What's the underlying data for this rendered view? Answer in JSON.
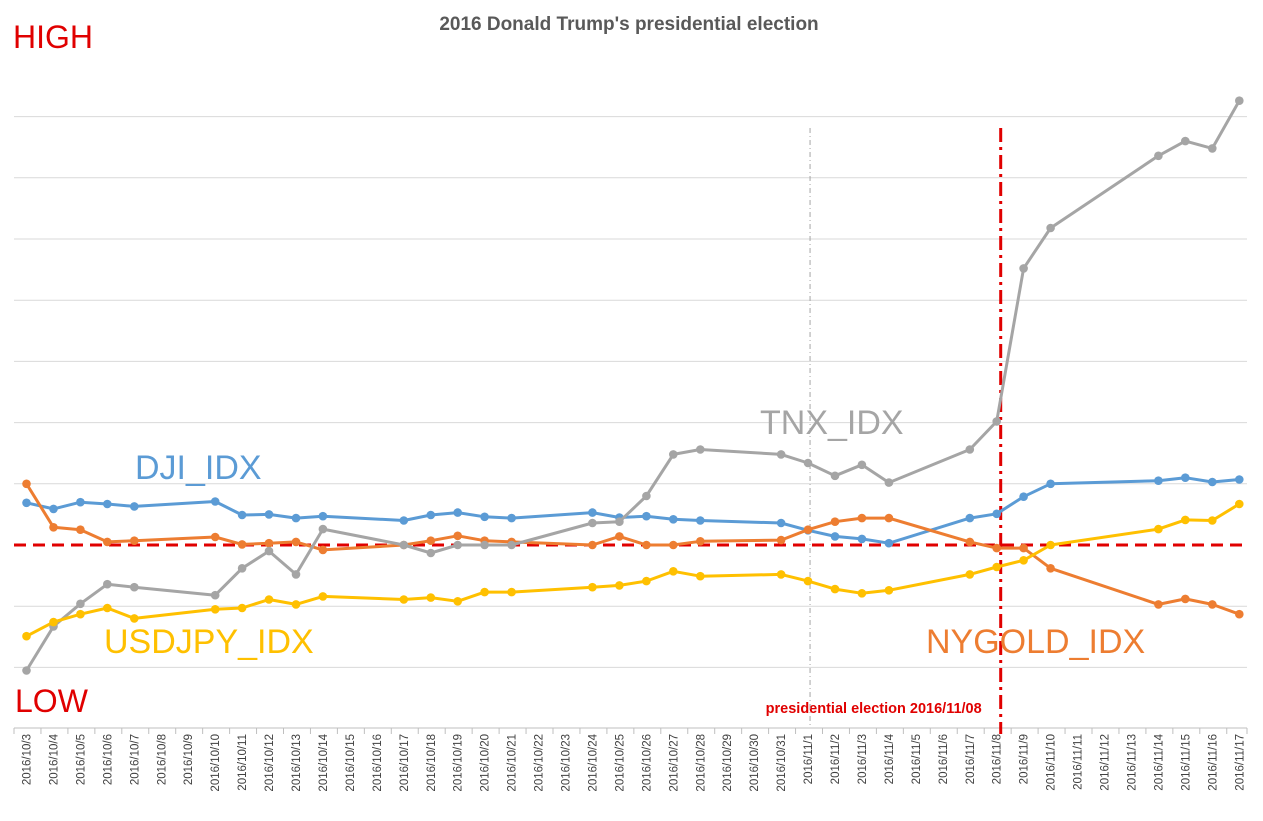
{
  "chart_data": {
    "type": "line",
    "title": "2016 Donald Trump's presidential election",
    "xlabel": "",
    "ylabel": "",
    "corner_labels": {
      "high": "HIGH",
      "low": "LOW"
    },
    "x_ticks": [
      "2016/10/3",
      "2016/10/4",
      "2016/10/5",
      "2016/10/6",
      "2016/10/7",
      "2016/10/8",
      "2016/10/9",
      "2016/10/10",
      "2016/10/11",
      "2016/10/12",
      "2016/10/13",
      "2016/10/14",
      "2016/10/15",
      "2016/10/16",
      "2016/10/17",
      "2016/10/18",
      "2016/10/19",
      "2016/10/20",
      "2016/10/21",
      "2016/10/22",
      "2016/10/23",
      "2016/10/24",
      "2016/10/25",
      "2016/10/26",
      "2016/10/27",
      "2016/10/28",
      "2016/10/29",
      "2016/10/30",
      "2016/10/31",
      "2016/11/1",
      "2016/11/2",
      "2016/11/3",
      "2016/11/4",
      "2016/11/5",
      "2016/11/6",
      "2016/11/7",
      "2016/11/8",
      "2016/11/9",
      "2016/11/10",
      "2016/11/11",
      "2016/11/12",
      "2016/11/13",
      "2016/11/14",
      "2016/11/15",
      "2016/11/16",
      "2016/11/17"
    ],
    "ylim": [
      -2,
      7
    ],
    "grid": true,
    "y_tick_labels": [],
    "baseline": 0,
    "series": [
      {
        "name": "DJI_IDX",
        "color": "#5b9bd5",
        "points": [
          [
            "2016/10/3",
            0.69
          ],
          [
            "2016/10/4",
            0.59
          ],
          [
            "2016/10/5",
            0.7
          ],
          [
            "2016/10/6",
            0.67
          ],
          [
            "2016/10/7",
            0.63
          ],
          [
            "2016/10/10",
            0.71
          ],
          [
            "2016/10/11",
            0.49
          ],
          [
            "2016/10/12",
            0.5
          ],
          [
            "2016/10/13",
            0.44
          ],
          [
            "2016/10/14",
            0.47
          ],
          [
            "2016/10/17",
            0.4
          ],
          [
            "2016/10/18",
            0.49
          ],
          [
            "2016/10/19",
            0.53
          ],
          [
            "2016/10/20",
            0.46
          ],
          [
            "2016/10/21",
            0.44
          ],
          [
            "2016/10/24",
            0.53
          ],
          [
            "2016/10/25",
            0.45
          ],
          [
            "2016/10/26",
            0.47
          ],
          [
            "2016/10/27",
            0.42
          ],
          [
            "2016/10/28",
            0.4
          ],
          [
            "2016/10/31",
            0.36
          ],
          [
            "2016/11/1",
            0.24
          ],
          [
            "2016/11/2",
            0.14
          ],
          [
            "2016/11/3",
            0.1
          ],
          [
            "2016/11/4",
            0.03
          ],
          [
            "2016/11/7",
            0.44
          ],
          [
            "2016/11/8",
            0.51
          ],
          [
            "2016/11/9",
            0.79
          ],
          [
            "2016/11/10",
            1.0
          ],
          [
            "2016/11/14",
            1.05
          ],
          [
            "2016/11/15",
            1.1
          ],
          [
            "2016/11/16",
            1.03
          ],
          [
            "2016/11/17",
            1.07
          ]
        ]
      },
      {
        "name": "NYGOLD_IDX",
        "color": "#ed7d31",
        "points": [
          [
            "2016/10/3",
            1.0
          ],
          [
            "2016/10/4",
            0.29
          ],
          [
            "2016/10/5",
            0.25
          ],
          [
            "2016/10/6",
            0.05
          ],
          [
            "2016/10/7",
            0.07
          ],
          [
            "2016/10/10",
            0.13
          ],
          [
            "2016/10/11",
            0.01
          ],
          [
            "2016/10/12",
            0.03
          ],
          [
            "2016/10/13",
            0.05
          ],
          [
            "2016/10/14",
            -0.08
          ],
          [
            "2016/10/17",
            0.0
          ],
          [
            "2016/10/18",
            0.07
          ],
          [
            "2016/10/19",
            0.15
          ],
          [
            "2016/10/20",
            0.07
          ],
          [
            "2016/10/21",
            0.05
          ],
          [
            "2016/10/24",
            0.0
          ],
          [
            "2016/10/25",
            0.14
          ],
          [
            "2016/10/26",
            0.0
          ],
          [
            "2016/10/27",
            0.0
          ],
          [
            "2016/10/28",
            0.06
          ],
          [
            "2016/10/31",
            0.08
          ],
          [
            "2016/11/1",
            0.25
          ],
          [
            "2016/11/2",
            0.38
          ],
          [
            "2016/11/3",
            0.44
          ],
          [
            "2016/11/4",
            0.44
          ],
          [
            "2016/11/7",
            0.05
          ],
          [
            "2016/11/8",
            -0.05
          ],
          [
            "2016/11/9",
            -0.05
          ],
          [
            "2016/11/10",
            -0.38
          ],
          [
            "2016/11/14",
            -0.97
          ],
          [
            "2016/11/15",
            -0.88
          ],
          [
            "2016/11/16",
            -0.97
          ],
          [
            "2016/11/17",
            -1.13
          ]
        ]
      },
      {
        "name": "TNX_IDX",
        "color": "#a5a5a5",
        "points": [
          [
            "2016/10/3",
            -2.05
          ],
          [
            "2016/10/4",
            -1.33
          ],
          [
            "2016/10/5",
            -0.96
          ],
          [
            "2016/10/6",
            -0.64
          ],
          [
            "2016/10/7",
            -0.69
          ],
          [
            "2016/10/10",
            -0.82
          ],
          [
            "2016/10/11",
            -0.38
          ],
          [
            "2016/10/12",
            -0.1
          ],
          [
            "2016/10/13",
            -0.48
          ],
          [
            "2016/10/14",
            0.26
          ],
          [
            "2016/10/17",
            0.0
          ],
          [
            "2016/10/18",
            -0.13
          ],
          [
            "2016/10/19",
            0.0
          ],
          [
            "2016/10/20",
            0.0
          ],
          [
            "2016/10/21",
            0.0
          ],
          [
            "2016/10/24",
            0.36
          ],
          [
            "2016/10/25",
            0.38
          ],
          [
            "2016/10/26",
            0.8
          ],
          [
            "2016/10/27",
            1.48
          ],
          [
            "2016/10/28",
            1.56
          ],
          [
            "2016/10/31",
            1.48
          ],
          [
            "2016/11/1",
            1.34
          ],
          [
            "2016/11/2",
            1.13
          ],
          [
            "2016/11/3",
            1.31
          ],
          [
            "2016/11/4",
            1.02
          ],
          [
            "2016/11/7",
            1.56
          ],
          [
            "2016/11/8",
            2.02
          ],
          [
            "2016/11/9",
            4.52
          ],
          [
            "2016/11/10",
            5.18
          ],
          [
            "2016/11/14",
            6.36
          ],
          [
            "2016/11/15",
            6.6
          ],
          [
            "2016/11/16",
            6.48
          ],
          [
            "2016/11/17",
            7.26
          ]
        ]
      },
      {
        "name": "USDJPY_IDX",
        "color": "#ffc000",
        "points": [
          [
            "2016/10/3",
            -1.49
          ],
          [
            "2016/10/4",
            -1.26
          ],
          [
            "2016/10/5",
            -1.13
          ],
          [
            "2016/10/6",
            -1.03
          ],
          [
            "2016/10/7",
            -1.2
          ],
          [
            "2016/10/10",
            -1.05
          ],
          [
            "2016/10/11",
            -1.03
          ],
          [
            "2016/10/12",
            -0.89
          ],
          [
            "2016/10/13",
            -0.97
          ],
          [
            "2016/10/14",
            -0.84
          ],
          [
            "2016/10/17",
            -0.89
          ],
          [
            "2016/10/18",
            -0.86
          ],
          [
            "2016/10/19",
            -0.92
          ],
          [
            "2016/10/20",
            -0.77
          ],
          [
            "2016/10/21",
            -0.77
          ],
          [
            "2016/10/24",
            -0.69
          ],
          [
            "2016/10/25",
            -0.66
          ],
          [
            "2016/10/26",
            -0.59
          ],
          [
            "2016/10/27",
            -0.43
          ],
          [
            "2016/10/28",
            -0.51
          ],
          [
            "2016/10/31",
            -0.48
          ],
          [
            "2016/11/1",
            -0.59
          ],
          [
            "2016/11/2",
            -0.72
          ],
          [
            "2016/11/3",
            -0.79
          ],
          [
            "2016/11/4",
            -0.74
          ],
          [
            "2016/11/7",
            -0.48
          ],
          [
            "2016/11/8",
            -0.36
          ],
          [
            "2016/11/9",
            -0.25
          ],
          [
            "2016/11/10",
            0.0
          ],
          [
            "2016/11/14",
            0.26
          ],
          [
            "2016/11/15",
            0.41
          ],
          [
            "2016/11/16",
            0.4
          ],
          [
            "2016/11/17",
            0.67
          ]
        ]
      }
    ],
    "series_labels": [
      {
        "series": "DJI_IDX",
        "text": "DJI_IDX"
      },
      {
        "series": "TNX_IDX",
        "text": "TNX_IDX"
      },
      {
        "series": "USDJPY_IDX",
        "text": "USDJPY_IDX"
      },
      {
        "series": "NYGOLD_IDX",
        "text": "NYGOLD_IDX"
      }
    ],
    "reference_lines": [
      {
        "type": "horizontal",
        "y": 0,
        "color": "#e00000",
        "style": "dashed"
      },
      {
        "type": "vertical",
        "x": "2016/11/8",
        "color": "#e00000",
        "style": "dash-dot",
        "label": "presidential election 2016/11/08"
      },
      {
        "type": "vertical",
        "x": "2016/11/1",
        "color": "#a5a5a5",
        "style": "dash-dot-thin"
      }
    ]
  }
}
